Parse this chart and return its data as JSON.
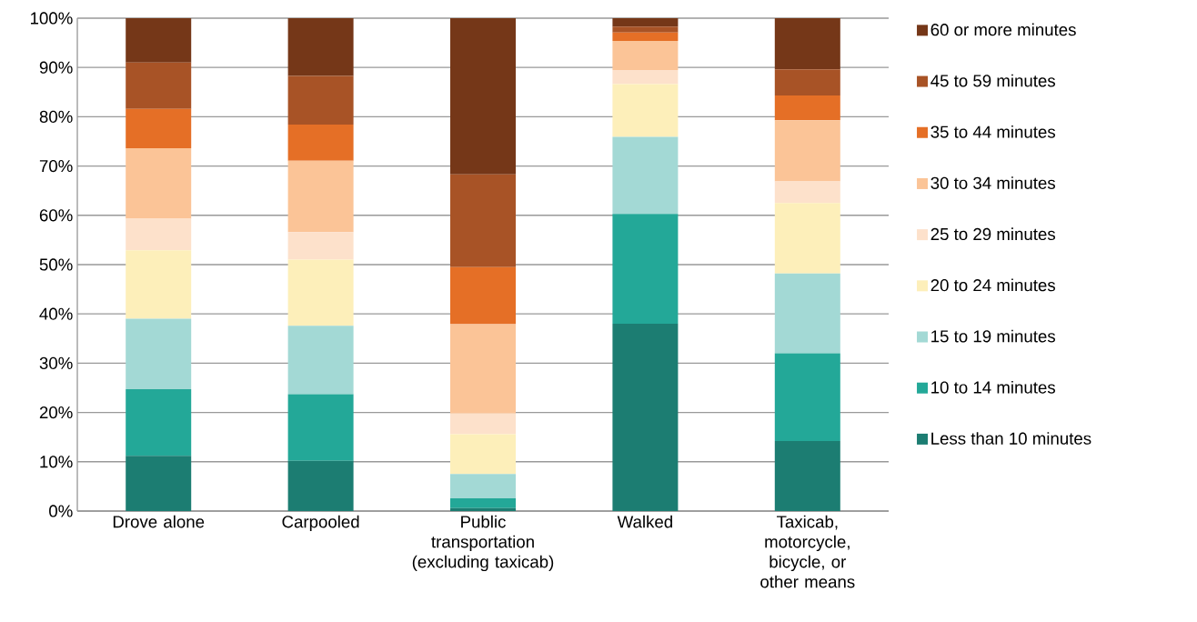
{
  "chart_data": {
    "type": "bar",
    "stacked": true,
    "grid": "y",
    "legend": "right",
    "categories": [
      "Drove alone",
      "Carpooled",
      "Public transportation (excluding taxicab)",
      "Walked",
      "Taxicab, motorcycle, bicycle, or other means"
    ],
    "ylim": [
      0,
      100
    ],
    "yticks": [
      {
        "value": 0,
        "label": "0%"
      },
      {
        "value": 10,
        "label": "10%"
      },
      {
        "value": 20,
        "label": "20%"
      },
      {
        "value": 30,
        "label": "30%"
      },
      {
        "value": 40,
        "label": "40%"
      },
      {
        "value": 50,
        "label": "50%"
      },
      {
        "value": 60,
        "label": "60%"
      },
      {
        "value": 70,
        "label": "70%"
      },
      {
        "value": 80,
        "label": "80%"
      },
      {
        "value": 90,
        "label": "90%"
      },
      {
        "value": 100,
        "label": "100%"
      }
    ],
    "series": [
      {
        "name": "Less than 10 minutes",
        "color": "#1c7d72",
        "values": [
          11.2,
          10.2,
          0.6,
          38.0,
          14.2
        ]
      },
      {
        "name": "10 to 14 minutes",
        "color": "#23a898",
        "values": [
          13.5,
          13.5,
          2.0,
          22.3,
          17.8
        ]
      },
      {
        "name": "15 to 19 minutes",
        "color": "#a3d9d5",
        "values": [
          14.3,
          13.9,
          4.9,
          15.6,
          16.2
        ]
      },
      {
        "name": "20 to 24 minutes",
        "color": "#fdefba",
        "values": [
          13.9,
          13.4,
          8.1,
          10.7,
          14.3
        ]
      },
      {
        "name": "25 to 29 minutes",
        "color": "#fde1cb",
        "values": [
          6.4,
          5.6,
          4.2,
          2.9,
          4.4
        ]
      },
      {
        "name": "30 to 34 minutes",
        "color": "#fbc497",
        "values": [
          14.3,
          14.5,
          18.1,
          5.9,
          12.4
        ]
      },
      {
        "name": "35 to 44 minutes",
        "color": "#e56f26",
        "values": [
          8.0,
          7.3,
          11.6,
          1.7,
          5.0
        ]
      },
      {
        "name": "45 to 59 minutes",
        "color": "#a85326",
        "values": [
          9.4,
          9.9,
          18.8,
          1.2,
          5.3
        ]
      },
      {
        "name": "60 or more minutes",
        "color": "#753718",
        "values": [
          9.0,
          11.7,
          31.7,
          1.7,
          10.4
        ]
      }
    ]
  }
}
